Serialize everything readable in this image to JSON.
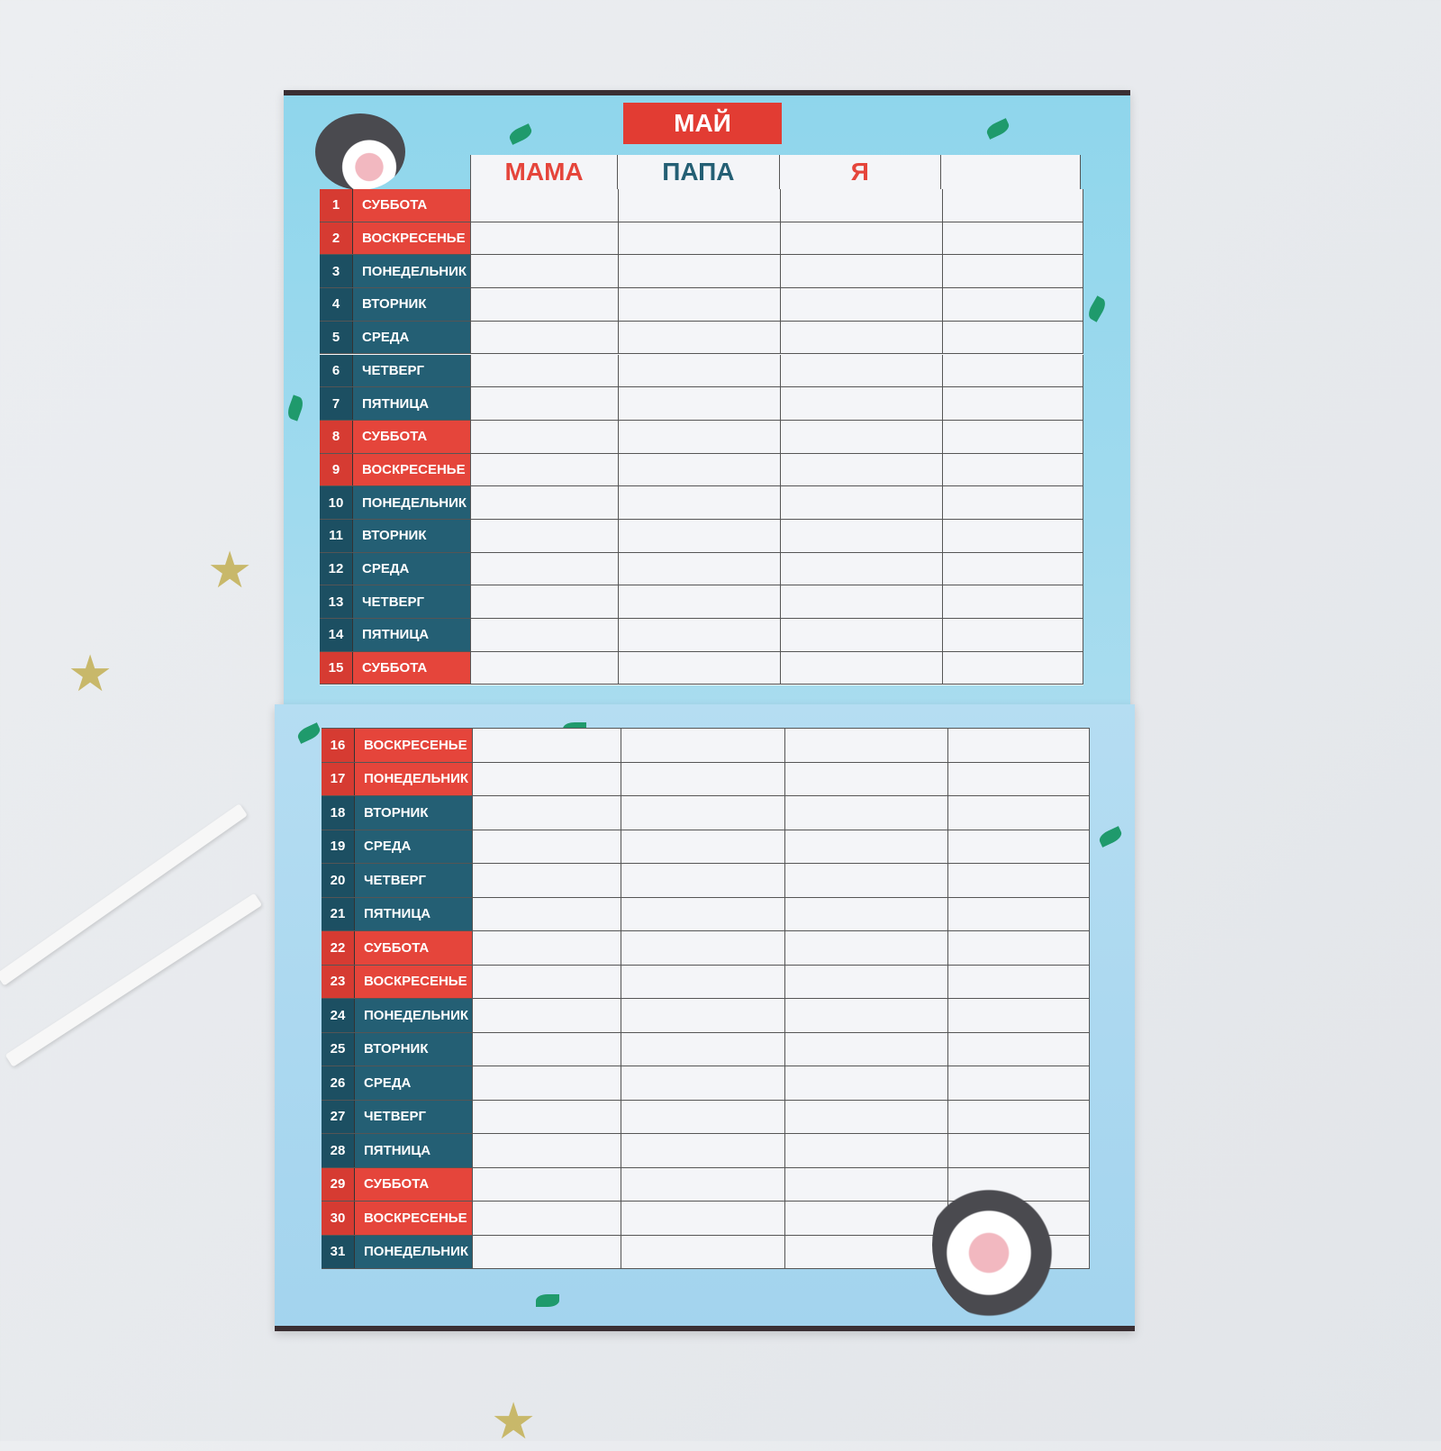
{
  "month": "МАЙ",
  "columns": [
    "МАМА",
    "ПАПА",
    "Я",
    ""
  ],
  "column_colors": [
    "#e5453b",
    "#245f74",
    "#e5453b"
  ],
  "weekend_color": "#e5453b",
  "weekday_color": "#245f74",
  "days": [
    {
      "n": "1",
      "d": "СУББОТА",
      "w": true
    },
    {
      "n": "2",
      "d": "ВОСКРЕСЕНЬЕ",
      "w": true
    },
    {
      "n": "3",
      "d": "ПОНЕДЕЛЬНИК",
      "w": false
    },
    {
      "n": "4",
      "d": "ВТОРНИК",
      "w": false
    },
    {
      "n": "5",
      "d": "СРЕДА",
      "w": false
    },
    {
      "n": "6",
      "d": "ЧЕТВЕРГ",
      "w": false
    },
    {
      "n": "7",
      "d": "ПЯТНИЦА",
      "w": false
    },
    {
      "n": "8",
      "d": "СУББОТА",
      "w": true
    },
    {
      "n": "9",
      "d": "ВОСКРЕСЕНЬЕ",
      "w": true
    },
    {
      "n": "10",
      "d": "ПОНЕДЕЛЬНИК",
      "w": false
    },
    {
      "n": "11",
      "d": "ВТОРНИК",
      "w": false
    },
    {
      "n": "12",
      "d": "СРЕДА",
      "w": false
    },
    {
      "n": "13",
      "d": "ЧЕТВЕРГ",
      "w": false
    },
    {
      "n": "14",
      "d": "ПЯТНИЦА",
      "w": false
    },
    {
      "n": "15",
      "d": "СУББОТА",
      "w": true
    },
    {
      "n": "16",
      "d": "ВОСКРЕСЕНЬЕ",
      "w": true
    },
    {
      "n": "17",
      "d": "ПОНЕДЕЛЬНИК",
      "w": true
    },
    {
      "n": "18",
      "d": "ВТОРНИК",
      "w": false
    },
    {
      "n": "19",
      "d": "СРЕДА",
      "w": false
    },
    {
      "n": "20",
      "d": "ЧЕТВЕРГ",
      "w": false
    },
    {
      "n": "21",
      "d": "ПЯТНИЦА",
      "w": false
    },
    {
      "n": "22",
      "d": "СУББОТА",
      "w": true
    },
    {
      "n": "23",
      "d": "ВОСКРЕСЕНЬЕ",
      "w": true
    },
    {
      "n": "24",
      "d": "ПОНЕДЕЛЬНИК",
      "w": false
    },
    {
      "n": "25",
      "d": "ВТОРНИК",
      "w": false
    },
    {
      "n": "26",
      "d": "СРЕДА",
      "w": false
    },
    {
      "n": "27",
      "d": "ЧЕТВЕРГ",
      "w": false
    },
    {
      "n": "28",
      "d": "ПЯТНИЦА",
      "w": false
    },
    {
      "n": "29",
      "d": "СУББОТА",
      "w": true
    },
    {
      "n": "30",
      "d": "ВОСКРЕСЕНЬЕ",
      "w": true
    },
    {
      "n": "31",
      "d": "ПОНЕДЕЛЬНИК",
      "w": false
    }
  ]
}
